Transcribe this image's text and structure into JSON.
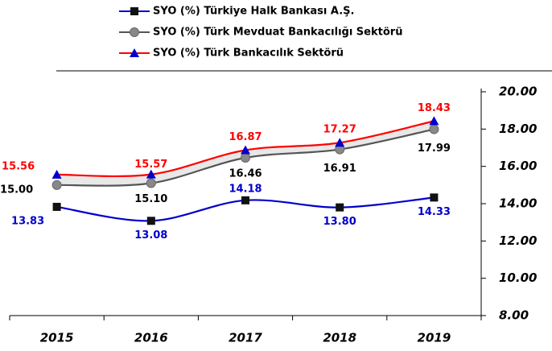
{
  "chart_data": {
    "type": "line",
    "categories": [
      "2015",
      "2016",
      "2017",
      "2018",
      "2019"
    ],
    "series": [
      {
        "name": "SYO (%) Türkiye Halk Bankası A.Ş.",
        "color": "#0000cc",
        "marker": "square",
        "marker_color": "#111111",
        "values": [
          13.83,
          13.08,
          14.18,
          13.8,
          14.33
        ],
        "value_labels": [
          "13.83",
          "13.08",
          "14.18",
          "13.80",
          "14.33"
        ]
      },
      {
        "name": "SYO (%) Türk Mevduat Bankacılığı Sektörü",
        "color": "#555555",
        "marker": "circle",
        "marker_color": "#888888",
        "values": [
          15.0,
          15.1,
          16.46,
          16.91,
          17.99
        ],
        "value_labels": [
          "15.00",
          "15.10",
          "16.46",
          "16.91",
          "17.99"
        ]
      },
      {
        "name": "SYO (%) Türk Bankacılık Sektörü",
        "color": "#ff0000",
        "marker": "triangle",
        "marker_color": "#0000cc",
        "values": [
          15.56,
          15.57,
          16.87,
          17.27,
          18.43
        ],
        "value_labels": [
          "15.56",
          "15.57",
          "16.87",
          "17.27",
          "18.43"
        ]
      }
    ],
    "ylim": [
      8,
      20
    ],
    "yticks": [
      {
        "value": 8,
        "label": "8.00"
      },
      {
        "value": 10,
        "label": "10.00"
      },
      {
        "value": 12,
        "label": "12.00"
      },
      {
        "value": 14,
        "label": "14.00"
      },
      {
        "value": 16,
        "label": "16.00"
      },
      {
        "value": 18,
        "label": "18.00"
      },
      {
        "value": 20,
        "label": "20.00"
      }
    ],
    "y_axis_side": "right"
  }
}
